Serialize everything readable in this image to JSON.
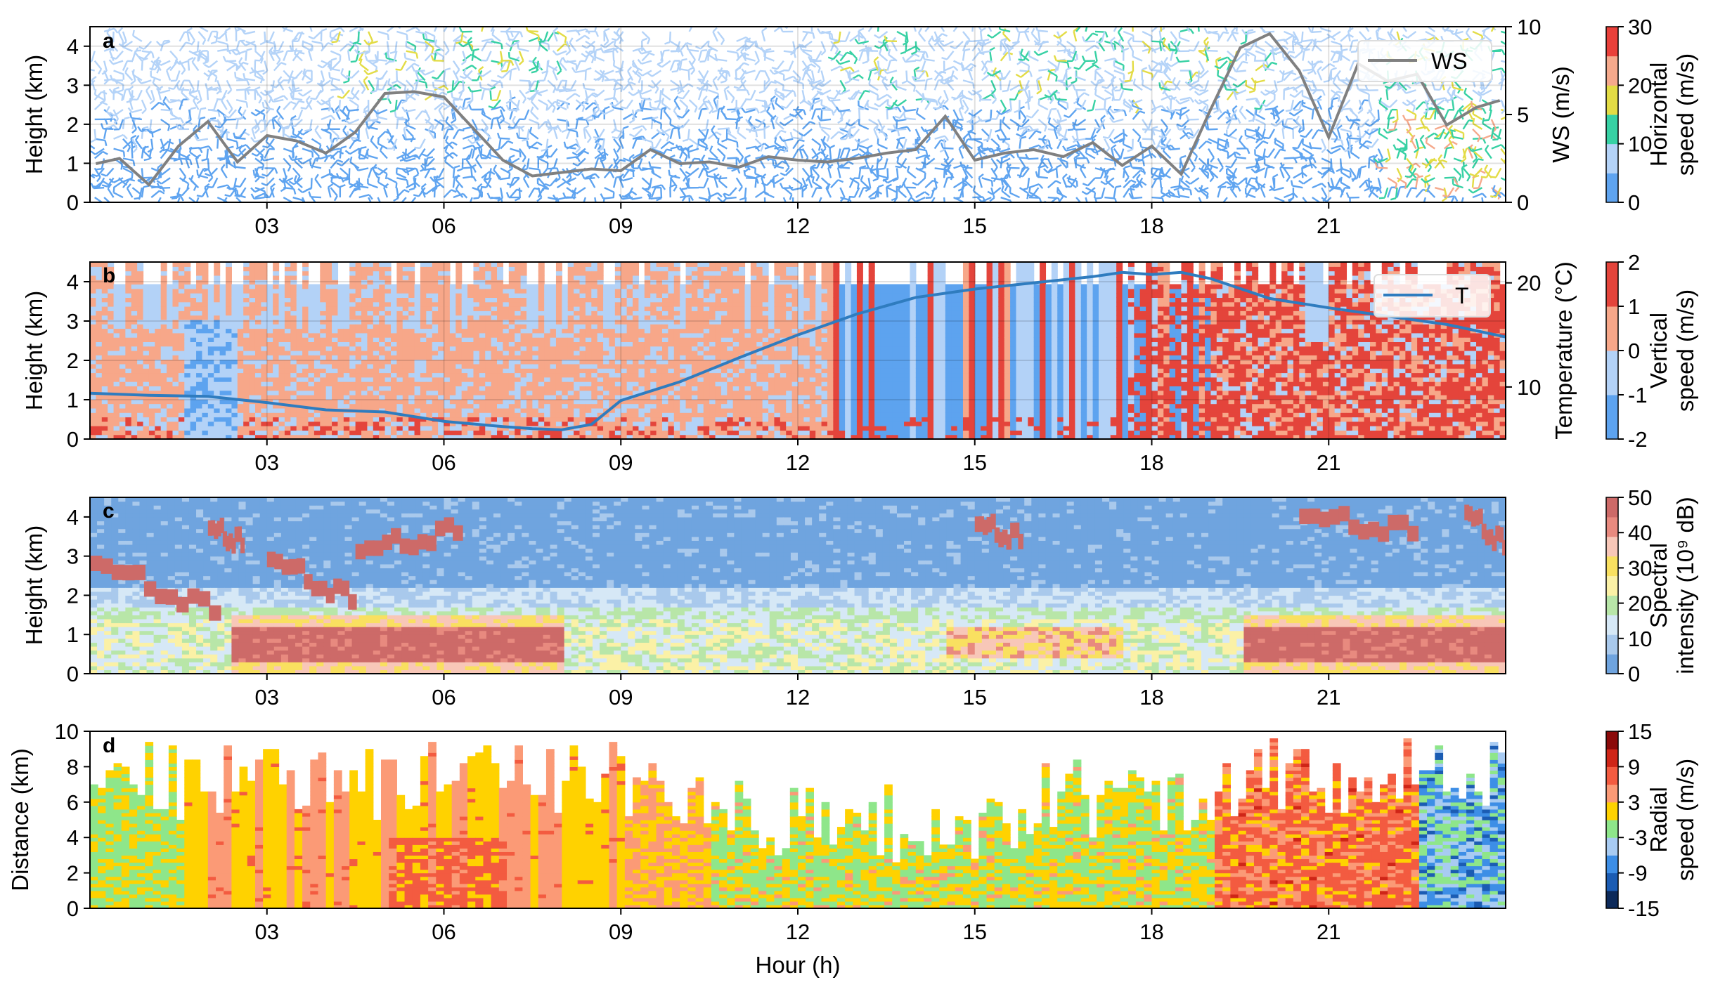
{
  "figure": {
    "x_tick_labels": [
      "03",
      "06",
      "09",
      "12",
      "15",
      "18",
      "21"
    ],
    "x_label": "Hour (h)"
  },
  "chart_data": [
    {
      "panel": "a",
      "type": "line",
      "description_series": "wind barbs + line",
      "xlabel": "",
      "ylabel": "Height (km)",
      "ylim": [
        0,
        4.5
      ],
      "y_ticks": [
        "0",
        "1",
        "2",
        "3",
        "4"
      ],
      "right_ylabel": "WS (m/s)",
      "right_ylim": [
        0,
        10
      ],
      "right_ticks": [
        "0",
        "5",
        "10"
      ],
      "legend": "WS",
      "legend_position": "top-right",
      "series": [
        {
          "name": "WS",
          "color": "#808080",
          "x": [
            0.1,
            0.5,
            1.0,
            1.5,
            2.0,
            2.5,
            3.0,
            3.5,
            4.0,
            4.5,
            5.0,
            5.5,
            6.0,
            6.5,
            7.0,
            7.5,
            8.0,
            8.5,
            9.0,
            9.5,
            10.0,
            10.5,
            11.0,
            11.5,
            12.0,
            12.5,
            13.0,
            13.5,
            14.0,
            14.5,
            15.0,
            15.5,
            16.0,
            16.5,
            17.0,
            17.5,
            18.0,
            18.5,
            19.0,
            19.5,
            20.0,
            20.5,
            21.0,
            21.5,
            22.0,
            22.5,
            23.0,
            23.5,
            23.9
          ],
          "values": [
            2.2,
            2.5,
            1.0,
            3.2,
            4.6,
            2.3,
            3.8,
            3.5,
            2.8,
            4.0,
            6.2,
            6.3,
            6.0,
            4.2,
            2.4,
            1.5,
            1.7,
            1.9,
            1.8,
            3.0,
            2.2,
            2.3,
            2.0,
            2.6,
            2.4,
            2.3,
            2.5,
            2.8,
            3.0,
            4.9,
            2.4,
            2.8,
            3.0,
            2.6,
            3.4,
            2.1,
            3.2,
            1.6,
            5.3,
            8.8,
            9.6,
            7.5,
            3.7,
            7.9,
            6.9,
            7.3,
            4.4,
            5.4,
            5.8
          ]
        }
      ],
      "colorbar": {
        "label": [
          "Horizontal",
          "speed (m/s)"
        ],
        "ticks": [
          "0",
          "10",
          "20",
          "30"
        ],
        "range": [
          0,
          30
        ],
        "colors": [
          "#5fa4f0",
          "#b4d3f8",
          "#37d1a4",
          "#e3dc45",
          "#f5a98c",
          "#e9403a"
        ]
      }
    },
    {
      "panel": "b",
      "type": "heatmap",
      "xlabel": "",
      "ylabel": "Height (km)",
      "ylim": [
        0,
        4.5
      ],
      "y_ticks": [
        "0",
        "1",
        "2",
        "3",
        "4"
      ],
      "right_ylabel": "Temperature (°C)",
      "right_ylim": [
        5,
        22
      ],
      "right_ticks": [
        "10",
        "20"
      ],
      "legend": "T",
      "legend_position": "top-right",
      "series": [
        {
          "name": "T",
          "color": "#2f7cbf",
          "x": [
            0,
            1,
            2,
            3,
            4,
            5,
            6,
            7,
            7.5,
            8,
            8.5,
            9,
            10,
            11,
            12,
            13,
            14,
            15,
            16,
            17,
            17.5,
            18,
            18.5,
            19,
            20,
            21,
            22,
            23,
            24
          ],
          "values": [
            9.4,
            9.2,
            9.1,
            8.5,
            7.8,
            7.6,
            6.7,
            6.2,
            6.0,
            5.9,
            6.4,
            8.7,
            10.5,
            12.8,
            15.0,
            17.0,
            18.6,
            19.4,
            20.0,
            20.6,
            21.0,
            20.8,
            21.0,
            20.4,
            18.5,
            17.6,
            16.8,
            16.0,
            14.8
          ]
        }
      ],
      "colorbar": {
        "label": [
          "Vertical",
          "speed (m/s)"
        ],
        "ticks": [
          "-2",
          "-1",
          "0",
          "1",
          "2"
        ],
        "range": [
          -2,
          2
        ],
        "colors": [
          "#5da3ef",
          "#b3d2f7",
          "#f7a789",
          "#e4443b"
        ]
      }
    },
    {
      "panel": "c",
      "type": "heatmap",
      "xlabel": "",
      "ylabel": "Height (km)",
      "ylim": [
        0,
        4.5
      ],
      "y_ticks": [
        "0",
        "1",
        "2",
        "3",
        "4"
      ],
      "colorbar": {
        "label": [
          "Spectral",
          "intensity (10⁹ dB)"
        ],
        "ticks": [
          "0",
          "10",
          "20",
          "30",
          "40",
          "50"
        ],
        "range": [
          0,
          50
        ],
        "colors": [
          "#6fa4df",
          "#a9c9ec",
          "#d6e8f6",
          "#b8e6a8",
          "#fbf1a6",
          "#f9e060",
          "#f8c7b8",
          "#e88a7f",
          "#cd6a68"
        ]
      }
    },
    {
      "panel": "d",
      "type": "heatmap",
      "xlabel": "Hour (h)",
      "ylabel": "Distance (km)",
      "ylim": [
        0,
        10
      ],
      "y_ticks": [
        "0",
        "2",
        "4",
        "6",
        "8",
        "10"
      ],
      "colorbar": {
        "label": [
          "Radial",
          "speed (m/s)"
        ],
        "ticks": [
          "-15",
          "-9",
          "-3",
          "3",
          "9",
          "15"
        ],
        "range": [
          -15,
          15
        ],
        "colors": [
          "#0d2a5a",
          "#1b5cb3",
          "#3d8ee6",
          "#a8cbf2",
          "#8ee68a",
          "#ffd200",
          "#fb9a76",
          "#f35b40",
          "#cf2517",
          "#8b0a0a"
        ]
      }
    }
  ]
}
